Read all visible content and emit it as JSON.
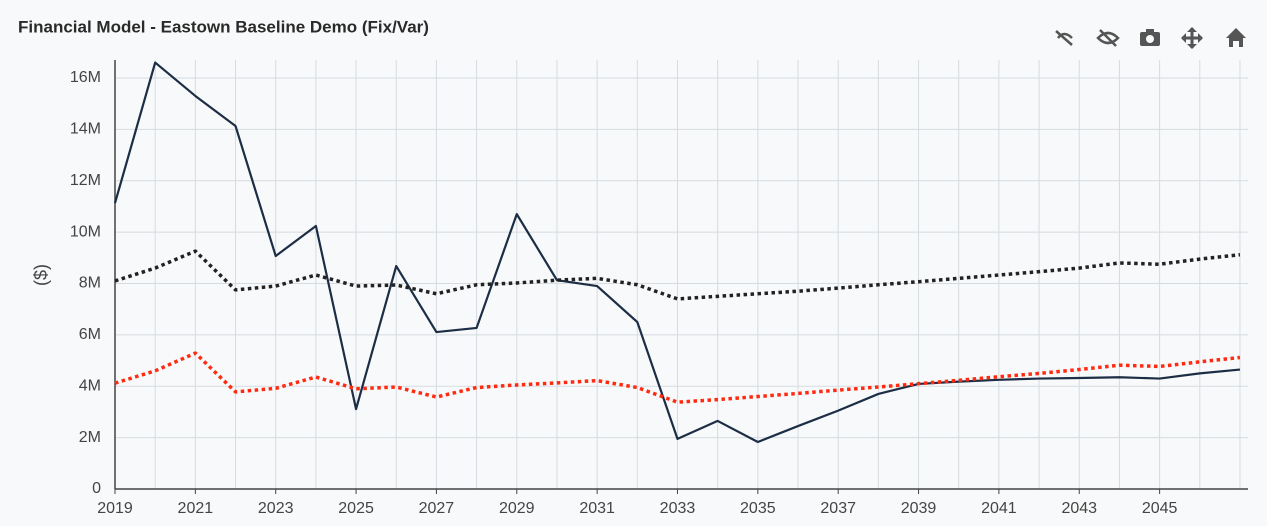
{
  "chart_data": {
    "type": "line",
    "title": "Financial Model - Eastown Baseline Demo (Fix/Var)",
    "y_label": "($)",
    "x": [
      2019,
      2020,
      2021,
      2022,
      2023,
      2024,
      2025,
      2026,
      2027,
      2028,
      2029,
      2030,
      2031,
      2032,
      2033,
      2034,
      2035,
      2036,
      2037,
      2038,
      2039,
      2040,
      2041,
      2042,
      2043,
      2044,
      2045,
      2046,
      2047
    ],
    "series": [
      {
        "color": "#1c2e45",
        "dash": "solid",
        "values": [
          11130000,
          16600000,
          15300000,
          14130000,
          9070000,
          10240000,
          3110000,
          8680000,
          6110000,
          6270000,
          10700000,
          8130000,
          7900000,
          6500000,
          1950000,
          2650000,
          1830000,
          2450000,
          3050000,
          3700000,
          4090000,
          4180000,
          4250000,
          4300000,
          4320000,
          4350000,
          4300000,
          4500000,
          4650000
        ]
      },
      {
        "color": "#222222",
        "dash": "dot",
        "values": [
          8100000,
          8600000,
          9260000,
          7750000,
          7900000,
          8330000,
          7900000,
          7940000,
          7600000,
          7950000,
          8020000,
          8130000,
          8200000,
          7950000,
          7400000,
          7500000,
          7600000,
          7700000,
          7820000,
          7950000,
          8070000,
          8200000,
          8330000,
          8460000,
          8600000,
          8800000,
          8750000,
          8950000,
          9120000
        ]
      },
      {
        "color": "#ff2a10",
        "dash": "dot",
        "values": [
          4120000,
          4600000,
          5290000,
          3780000,
          3920000,
          4360000,
          3900000,
          3970000,
          3580000,
          3950000,
          4050000,
          4130000,
          4220000,
          3950000,
          3380000,
          3480000,
          3600000,
          3720000,
          3850000,
          3970000,
          4100000,
          4230000,
          4370000,
          4500000,
          4650000,
          4820000,
          4770000,
          4950000,
          5120000
        ]
      }
    ],
    "xlim": [
      2019,
      2047.2
    ],
    "xticks": [
      2019,
      2021,
      2023,
      2025,
      2027,
      2029,
      2031,
      2033,
      2035,
      2037,
      2039,
      2041,
      2043,
      2045
    ],
    "ylim": [
      0,
      16700000
    ],
    "yticks": [
      {
        "value": 0,
        "label": "0"
      },
      {
        "value": 2000000,
        "label": "2M"
      },
      {
        "value": 4000000,
        "label": "4M"
      },
      {
        "value": 6000000,
        "label": "6M"
      },
      {
        "value": 8000000,
        "label": "8M"
      },
      {
        "value": 10000000,
        "label": "10M"
      },
      {
        "value": 12000000,
        "label": "12M"
      },
      {
        "value": 14000000,
        "label": "14M"
      },
      {
        "value": 16000000,
        "label": "16M"
      }
    ],
    "grid": true
  }
}
